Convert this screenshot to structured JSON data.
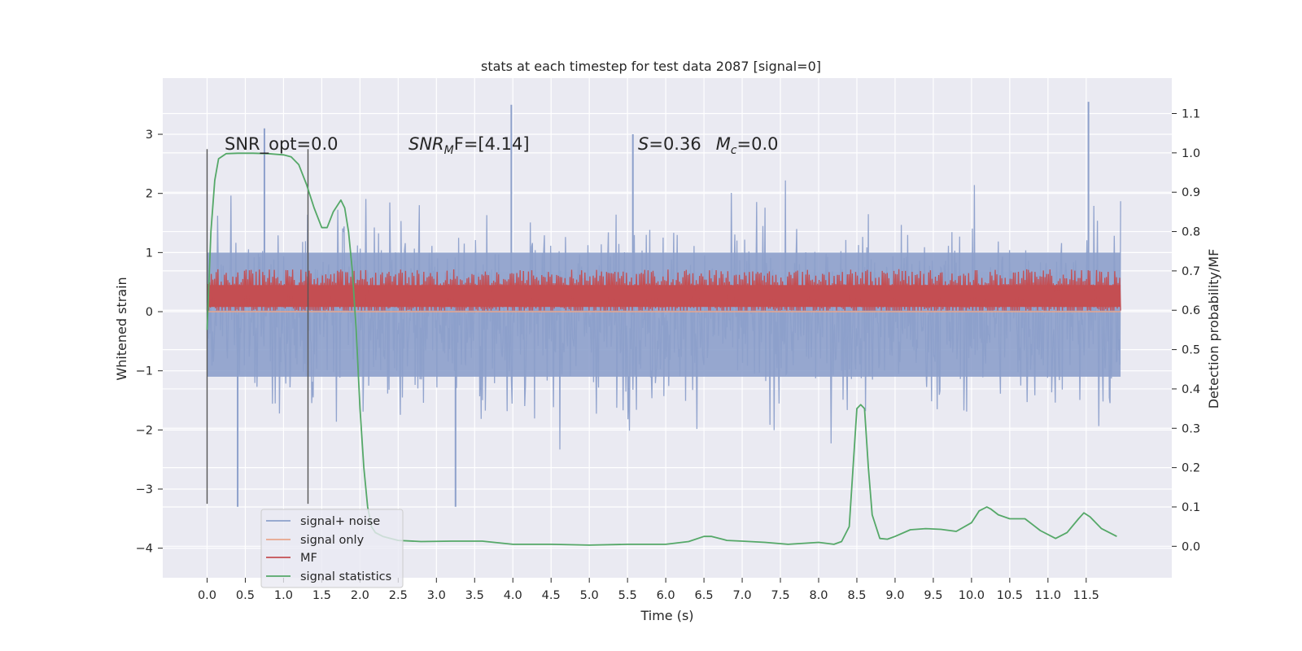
{
  "chart_data": {
    "type": "line",
    "title": "stats at each timestep for test data 2087 [signal=0]",
    "xlabel": "Time (s)",
    "ylabel_left": "Whitened strain",
    "ylabel_right": "Detection probability/MF",
    "xlim": [
      -0.58,
      12.62
    ],
    "ylim_left": [
      -4.5,
      3.95
    ],
    "ylim_right": [
      -0.08,
      1.19
    ],
    "x_ticks": [
      "0.0",
      "0.5",
      "1.0",
      "1.5",
      "2.0",
      "2.5",
      "3.0",
      "3.5",
      "4.0",
      "4.5",
      "5.0",
      "5.5",
      "6.0",
      "6.5",
      "7.0",
      "7.5",
      "8.0",
      "8.5",
      "9.0",
      "9.5",
      "10.0",
      "10.5",
      "11.0",
      "11.5"
    ],
    "y_left_ticks": [
      "3",
      "2",
      "1",
      "0",
      "−1",
      "−2",
      "−3",
      "−4"
    ],
    "y_right_ticks": [
      "1.1",
      "1.0",
      "0.9",
      "0.8",
      "0.7",
      "0.6",
      "0.5",
      "0.4",
      "0.3",
      "0.2",
      "0.1",
      "0.0"
    ],
    "annotations": {
      "snr_opt": "SNR_opt=0.0",
      "snr_mf_name": "SNR",
      "snr_mf_sub": "M",
      "snr_mf_rest": "F=[4.14]",
      "s_name": "S",
      "s_rest": "=0.36",
      "mc_name": "M",
      "mc_sub": "c",
      "mc_rest": "=0.0"
    },
    "vertical_markers": [
      0.0,
      1.32
    ],
    "legend": {
      "placement": "lower-left",
      "entries": [
        {
          "label": "signal+ noise",
          "color": "#8da0cb"
        },
        {
          "label": "signal only",
          "color": "#e8a58c"
        },
        {
          "label": "MF",
          "color": "#c44e52"
        },
        {
          "label": "signal statistics",
          "color": "#55a868"
        }
      ]
    },
    "series": [
      {
        "name": "signal+ noise",
        "axis": "left",
        "color": "#8da0cb",
        "x_range": [
          0.0,
          11.95
        ],
        "center": -0.05,
        "approx_band": [
          -2.4,
          2.1
        ],
        "peaks": [
          [
            0.75,
            3.1
          ],
          [
            3.98,
            3.5
          ],
          [
            5.57,
            3.0
          ],
          [
            11.53,
            3.55
          ],
          [
            3.25,
            -3.3
          ],
          [
            0.4,
            -3.3
          ]
        ]
      },
      {
        "name": "signal only",
        "axis": "left",
        "color": "#e8a58c",
        "x_range": [
          0.0,
          11.95
        ],
        "constant": 0.0
      },
      {
        "name": "MF",
        "axis": "left",
        "color": "#c44e52",
        "x_range": [
          0.0,
          11.95
        ],
        "approx_band": [
          0.0,
          0.85
        ]
      },
      {
        "name": "signal statistics",
        "axis": "right",
        "color": "#55a868",
        "x": [
          0.0,
          0.05,
          0.1,
          0.15,
          0.25,
          0.4,
          0.6,
          0.8,
          1.0,
          1.1,
          1.2,
          1.3,
          1.4,
          1.5,
          1.57,
          1.65,
          1.75,
          1.8,
          1.85,
          1.9,
          1.95,
          2.0,
          2.05,
          2.1,
          2.15,
          2.2,
          2.3,
          2.5,
          2.8,
          3.2,
          3.6,
          4.0,
          4.5,
          5.0,
          5.5,
          6.0,
          6.3,
          6.5,
          6.6,
          6.8,
          7.0,
          7.3,
          7.6,
          8.0,
          8.2,
          8.3,
          8.4,
          8.45,
          8.5,
          8.55,
          8.6,
          8.65,
          8.7,
          8.8,
          8.9,
          9.0,
          9.2,
          9.4,
          9.6,
          9.8,
          10.0,
          10.1,
          10.2,
          10.25,
          10.35,
          10.5,
          10.7,
          10.9,
          11.1,
          11.25,
          11.4,
          11.47,
          11.55,
          11.7,
          11.9
        ],
        "y": [
          0.55,
          0.8,
          0.93,
          0.985,
          0.998,
          0.999,
          0.999,
          0.998,
          0.995,
          0.99,
          0.97,
          0.92,
          0.86,
          0.81,
          0.81,
          0.85,
          0.88,
          0.86,
          0.8,
          0.7,
          0.55,
          0.35,
          0.2,
          0.1,
          0.05,
          0.035,
          0.025,
          0.015,
          0.012,
          0.013,
          0.013,
          0.005,
          0.005,
          0.003,
          0.005,
          0.005,
          0.012,
          0.025,
          0.025,
          0.015,
          0.013,
          0.01,
          0.005,
          0.01,
          0.005,
          0.012,
          0.05,
          0.2,
          0.35,
          0.36,
          0.35,
          0.2,
          0.08,
          0.02,
          0.018,
          0.025,
          0.042,
          0.045,
          0.043,
          0.038,
          0.06,
          0.09,
          0.1,
          0.095,
          0.08,
          0.07,
          0.07,
          0.04,
          0.02,
          0.035,
          0.07,
          0.085,
          0.075,
          0.045,
          0.025
        ]
      }
    ]
  }
}
